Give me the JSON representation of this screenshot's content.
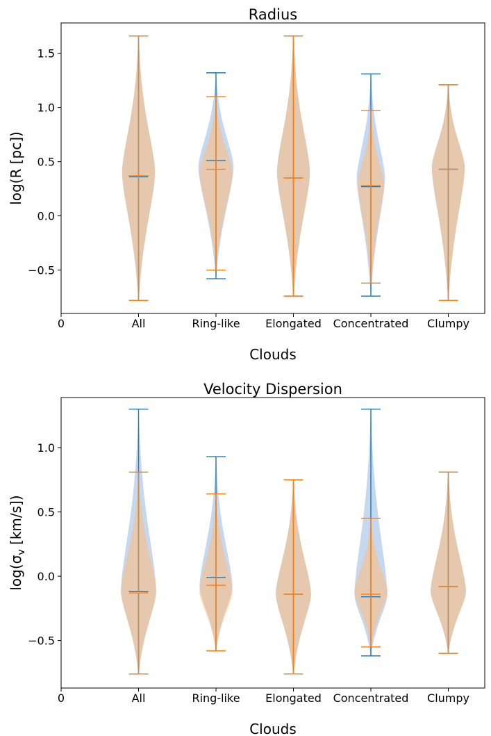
{
  "colors": {
    "series_a": "#1f77b4",
    "series_b": "#ff7f0e",
    "fill_a": "#aec7e8",
    "fill_b": "#ffbb78"
  },
  "chart_data": [
    {
      "type": "violin",
      "title": "Radius",
      "xlabel": "Clouds",
      "ylabel": "log(R [pc])",
      "x_ticks": [
        "0",
        "All",
        "Ring-like",
        "Elongated",
        "Concentrated",
        "Clumpy"
      ],
      "y_ticks": [
        "1.5",
        "1.0",
        "0.5",
        "0.0",
        "−0.5"
      ],
      "ylim": [
        -0.9,
        1.78
      ],
      "categories": [
        "All",
        "Ring-like",
        "Elongated",
        "Concentrated",
        "Clumpy"
      ],
      "series": [
        {
          "color": "#1f77b4",
          "violins": [
            {
              "min": -0.78,
              "max": 1.66,
              "median": 0.36,
              "peak": 0.4,
              "halfwidth": 0.7
            },
            {
              "min": -0.58,
              "max": 1.32,
              "median": 0.51,
              "peak": 0.45,
              "halfwidth": 0.75
            },
            {
              "min": -0.74,
              "max": 1.66,
              "median": 0.35,
              "peak": 0.4,
              "halfwidth": 0.7
            },
            {
              "min": -0.74,
              "max": 1.31,
              "median": 0.27,
              "peak": 0.35,
              "halfwidth": 0.6
            },
            {
              "min": -0.78,
              "max": 1.21,
              "median": 0.43,
              "peak": 0.45,
              "halfwidth": 0.7
            }
          ]
        },
        {
          "color": "#ff7f0e",
          "violins": [
            {
              "min": -0.78,
              "max": 1.66,
              "median": 0.37,
              "peak": 0.4,
              "halfwidth": 0.7
            },
            {
              "min": -0.5,
              "max": 1.1,
              "median": 0.43,
              "peak": 0.4,
              "halfwidth": 0.7
            },
            {
              "min": -0.74,
              "max": 1.66,
              "median": 0.35,
              "peak": 0.4,
              "halfwidth": 0.7
            },
            {
              "min": -0.62,
              "max": 0.97,
              "median": 0.28,
              "peak": 0.3,
              "halfwidth": 0.55
            },
            {
              "min": -0.78,
              "max": 1.21,
              "median": 0.43,
              "peak": 0.45,
              "halfwidth": 0.7
            }
          ]
        }
      ]
    },
    {
      "type": "violin",
      "title": "Velocity Dispersion",
      "xlabel": "Clouds",
      "ylabel": "log(σ_v [km/s])",
      "x_ticks": [
        "0",
        "All",
        "Ring-like",
        "Elongated",
        "Concentrated",
        "Clumpy"
      ],
      "y_ticks": [
        "1.0",
        "0.5",
        "0.0",
        "−0.5"
      ],
      "ylim": [
        -0.87,
        1.39
      ],
      "categories": [
        "All",
        "Ring-like",
        "Elongated",
        "Concentrated",
        "Clumpy"
      ],
      "series": [
        {
          "color": "#1f77b4",
          "violins": [
            {
              "min": -0.76,
              "max": 1.3,
              "median": -0.12,
              "peak": -0.12,
              "halfwidth": 0.75
            },
            {
              "min": -0.58,
              "max": 0.93,
              "median": -0.01,
              "peak": -0.08,
              "halfwidth": 0.7
            },
            {
              "min": -0.76,
              "max": 0.75,
              "median": -0.14,
              "peak": -0.14,
              "halfwidth": 0.75
            },
            {
              "min": -0.62,
              "max": 1.3,
              "median": -0.16,
              "peak": -0.15,
              "halfwidth": 0.7
            },
            {
              "min": -0.6,
              "max": 0.81,
              "median": -0.08,
              "peak": -0.12,
              "halfwidth": 0.75
            }
          ]
        },
        {
          "color": "#ff7f0e",
          "violins": [
            {
              "min": -0.76,
              "max": 0.81,
              "median": -0.13,
              "peak": -0.12,
              "halfwidth": 0.75
            },
            {
              "min": -0.58,
              "max": 0.64,
              "median": -0.07,
              "peak": -0.12,
              "halfwidth": 0.7
            },
            {
              "min": -0.76,
              "max": 0.75,
              "median": -0.14,
              "peak": -0.14,
              "halfwidth": 0.75
            },
            {
              "min": -0.55,
              "max": 0.45,
              "median": -0.14,
              "peak": -0.12,
              "halfwidth": 0.7
            },
            {
              "min": -0.6,
              "max": 0.81,
              "median": -0.08,
              "peak": -0.12,
              "halfwidth": 0.75
            }
          ]
        }
      ]
    }
  ]
}
